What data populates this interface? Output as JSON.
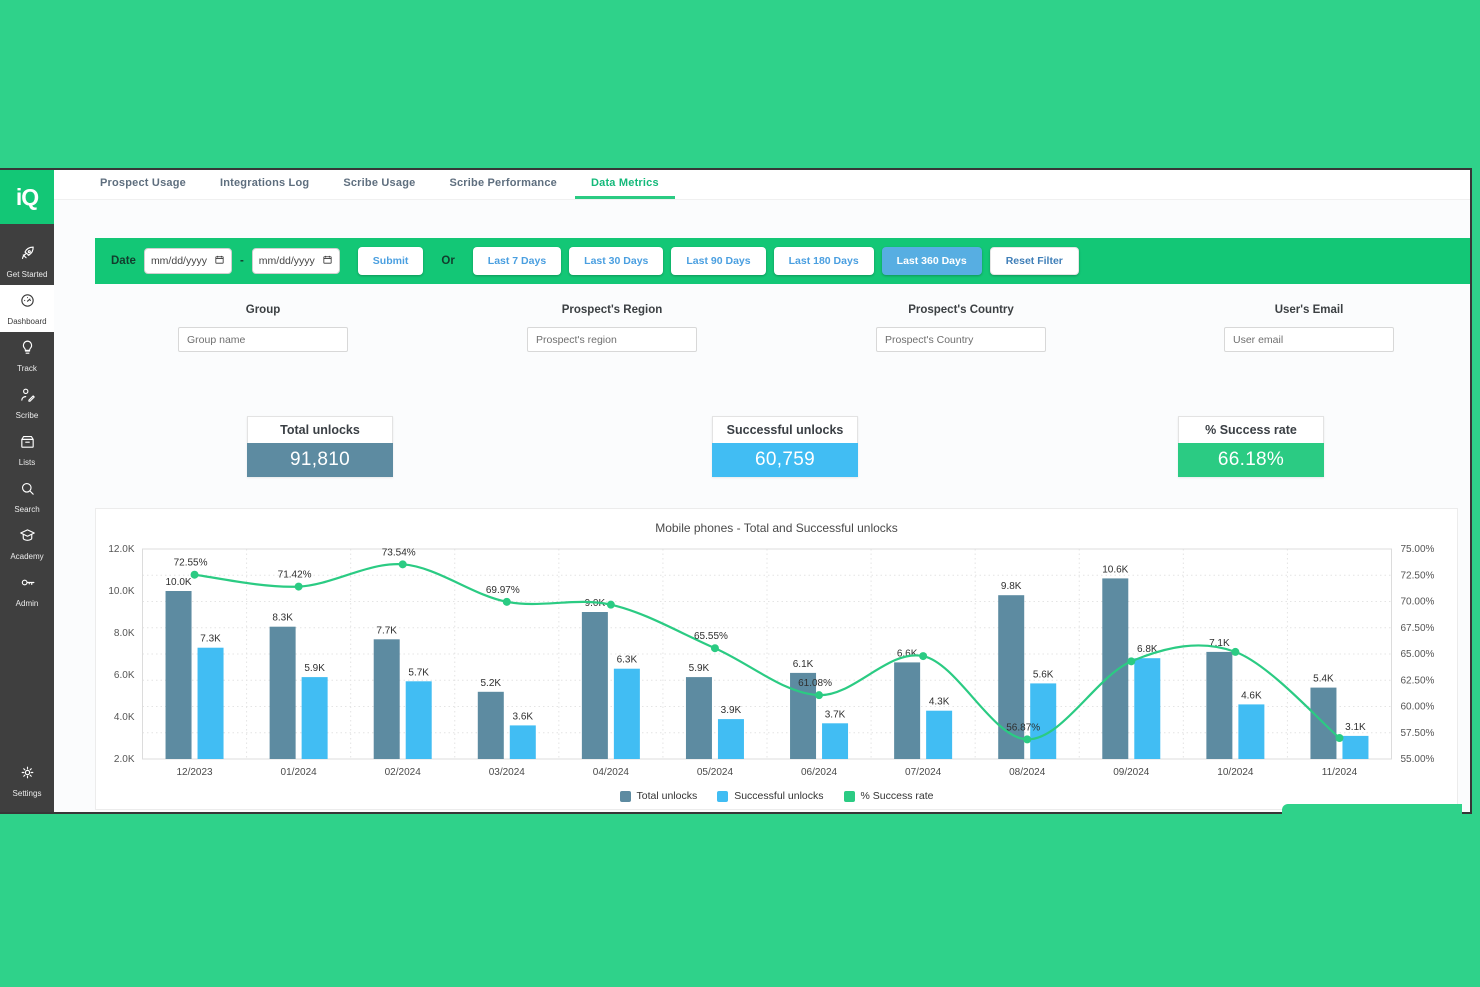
{
  "app": {
    "logo_text": "iQ",
    "colors": {
      "page_green": "#2fd28a",
      "filterbar_green": "#13c776",
      "accent_blue": "#4a9fe0",
      "active_button_blue": "#57aee2",
      "slate": "#5d8ba1",
      "light_blue": "#41bdf3",
      "success_green": "#2bcb83",
      "sidebar_dark": "#3f3f3f"
    }
  },
  "sidebar": {
    "items": [
      {
        "label": "Get Started",
        "icon": "rocket-icon"
      },
      {
        "label": "Dashboard",
        "icon": "gauge-icon",
        "active": true
      },
      {
        "label": "Track",
        "icon": "bulb-icon"
      },
      {
        "label": "Scribe",
        "icon": "scribe-icon"
      },
      {
        "label": "Lists",
        "icon": "archive-icon"
      },
      {
        "label": "Search",
        "icon": "search-icon"
      },
      {
        "label": "Academy",
        "icon": "academy-icon"
      },
      {
        "label": "Admin",
        "icon": "key-icon"
      }
    ],
    "bottom_item": {
      "label": "Settings",
      "icon": "gear-icon"
    }
  },
  "tabs": [
    {
      "label": "Prospect Usage"
    },
    {
      "label": "Integrations Log"
    },
    {
      "label": "Scribe Usage"
    },
    {
      "label": "Scribe Performance"
    },
    {
      "label": "Data Metrics",
      "active": true
    }
  ],
  "filter_bar": {
    "date_label": "Date",
    "start_date_placeholder": "mm/dd/yyyy",
    "end_date_placeholder": "mm/dd/yyyy",
    "separator": "-",
    "submit_label": "Submit",
    "or_label": "Or",
    "quick_ranges": [
      {
        "label": "Last 7 Days"
      },
      {
        "label": "Last 30 Days"
      },
      {
        "label": "Last 90 Days"
      },
      {
        "label": "Last 180 Days"
      },
      {
        "label": "Last 360 Days",
        "active": true
      }
    ],
    "reset_label": "Reset Filter"
  },
  "filters": [
    {
      "label": "Group",
      "placeholder": "Group name"
    },
    {
      "label": "Prospect's Region",
      "placeholder": "Prospect's region"
    },
    {
      "label": "Prospect's Country",
      "placeholder": "Prospect's Country"
    },
    {
      "label": "User's Email",
      "placeholder": "User email"
    }
  ],
  "kpis": [
    {
      "label": "Total unlocks",
      "value": "91,810",
      "color": "#5d8ba1"
    },
    {
      "label": "Successful unlocks",
      "value": "60,759",
      "color": "#41bdf3"
    },
    {
      "label": "% Success rate",
      "value": "66.18%",
      "color": "#2bcb83"
    }
  ],
  "chart_data": {
    "type": "bar",
    "combo": "bar+line",
    "title": "Mobile phones - Total and Successful unlocks",
    "categories": [
      "12/2023",
      "01/2024",
      "02/2024",
      "03/2024",
      "04/2024",
      "05/2024",
      "06/2024",
      "07/2024",
      "08/2024",
      "09/2024",
      "10/2024",
      "11/2024"
    ],
    "series": [
      {
        "name": "Total unlocks",
        "type": "bar",
        "color": "#5d8ba1",
        "axis": "left",
        "values": [
          10000,
          8300,
          7700,
          5200,
          9000,
          5900,
          6100,
          6600,
          9800,
          10600,
          7100,
          5400
        ],
        "labels": [
          "10.0K",
          "8.3K",
          "7.7K",
          "5.2K",
          "9.0K",
          "5.9K",
          "6.1K",
          "6.6K",
          "9.8K",
          "10.6K",
          "7.1K",
          "5.4K"
        ]
      },
      {
        "name": "Successful unlocks",
        "type": "bar",
        "color": "#41bdf3",
        "axis": "left",
        "values": [
          7300,
          5900,
          5700,
          3600,
          6300,
          3900,
          3700,
          4300,
          5600,
          6800,
          4600,
          3100
        ],
        "labels": [
          "7.3K",
          "5.9K",
          "5.7K",
          "3.6K",
          "6.3K",
          "3.9K",
          "3.7K",
          "4.3K",
          "5.6K",
          "6.8K",
          "4.6K",
          "3.1K"
        ]
      },
      {
        "name": "% Success rate",
        "type": "line",
        "color": "#2bcb83",
        "axis": "right",
        "values": [
          72.55,
          71.42,
          73.54,
          69.97,
          69.7,
          65.55,
          61.08,
          64.8,
          56.87,
          64.3,
          65.2,
          57.0
        ],
        "labels": [
          "72.55%",
          "71.42%",
          "73.54%",
          "69.97%",
          "",
          "65.55%",
          "61.08%",
          "",
          "56.87%",
          "",
          "",
          ""
        ]
      }
    ],
    "left_axis": {
      "min": 2000,
      "max": 12000,
      "ticks": [
        {
          "v": 12000,
          "label": "12.0K"
        },
        {
          "v": 10000,
          "label": "10.0K"
        },
        {
          "v": 8000,
          "label": "8.0K"
        },
        {
          "v": 6000,
          "label": "6.0K"
        },
        {
          "v": 4000,
          "label": "4.0K"
        },
        {
          "v": 2000,
          "label": "2.0K"
        }
      ]
    },
    "right_axis": {
      "min": 55,
      "max": 75,
      "ticks": [
        {
          "v": 75,
          "label": "75.00%"
        },
        {
          "v": 72.5,
          "label": "72.50%"
        },
        {
          "v": 70,
          "label": "70.00%"
        },
        {
          "v": 67.5,
          "label": "67.50%"
        },
        {
          "v": 65,
          "label": "65.00%"
        },
        {
          "v": 62.5,
          "label": "62.50%"
        },
        {
          "v": 60,
          "label": "60.00%"
        },
        {
          "v": 57.5,
          "label": "57.50%"
        },
        {
          "v": 55,
          "label": "55.00%"
        }
      ]
    },
    "grid": true,
    "legend_position": "bottom",
    "legend": [
      "Total unlocks",
      "Successful unlocks",
      "% Success rate"
    ]
  }
}
